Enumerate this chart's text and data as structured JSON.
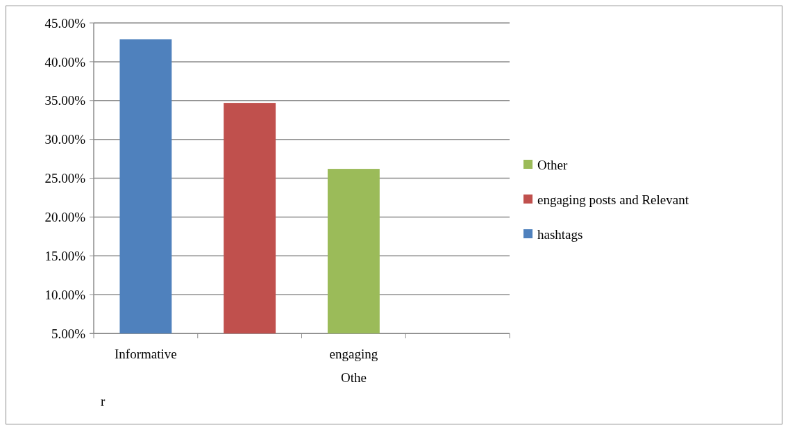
{
  "chart_data": {
    "type": "bar",
    "categories": [
      "Informative",
      null,
      "engaging Othe",
      null
    ],
    "series": [
      {
        "name": "hashtags",
        "color": "#4f81bd",
        "values": [
          42.9,
          null,
          null,
          null
        ]
      },
      {
        "name": "engaging posts and Relevant",
        "color": "#c0504d",
        "values": [
          null,
          34.7,
          null,
          null
        ]
      },
      {
        "name": "Other",
        "color": "#9bbb59",
        "values": [
          null,
          null,
          26.2,
          null
        ]
      }
    ],
    "ylim": [
      5,
      45
    ],
    "yticks": [
      {
        "value": 5,
        "label": "5.00%"
      },
      {
        "value": 10,
        "label": "10.00%"
      },
      {
        "value": 15,
        "label": "15.00%"
      },
      {
        "value": 20,
        "label": "20.00%"
      },
      {
        "value": 25,
        "label": "25.00%"
      },
      {
        "value": 30,
        "label": "30.00%"
      },
      {
        "value": 35,
        "label": "35.00%"
      },
      {
        "value": 40,
        "label": "40.00%"
      },
      {
        "value": 45,
        "label": "45.00%"
      }
    ],
    "grid": "y",
    "legend": "right",
    "annotations": [
      "r"
    ]
  }
}
